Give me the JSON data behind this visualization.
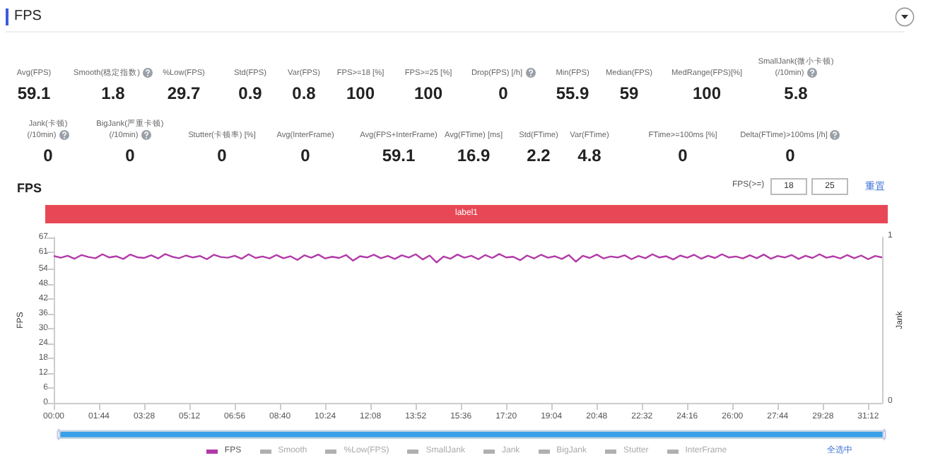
{
  "chart_data": [
    {
      "type": "other",
      "title": "FPS",
      "categories": [
        "Avg(FPS)",
        "Smooth(稳定指数)",
        "%Low(FPS)",
        "Std(FPS)",
        "Var(FPS)",
        "FPS>=18 [%]",
        "FPS>=25 [%]",
        "Drop(FPS) [/h]",
        "Min(FPS)",
        "Median(FPS)",
        "MedRange(FPS)[%]",
        "SmallJank(微小卡顿)\n(/10min)",
        "Jank(卡顿)\n(/10min)",
        "BigJank(严重卡顿)\n(/10min)",
        "Stutter(卡顿率) [%]",
        "Avg(InterFrame)",
        "Avg(FPS+InterFrame)",
        "Avg(FTime) [ms]",
        "Std(FTime)",
        "Var(FTime)",
        "FTime>=100ms [%]",
        "Delta(FTime)>100ms [/h]"
      ],
      "values": [
        59.1,
        1.8,
        29.7,
        0.9,
        0.8,
        100,
        100,
        0,
        55.9,
        59,
        100,
        5.8,
        0,
        0,
        0,
        0,
        59.1,
        16.9,
        2.2,
        4.8,
        0,
        0
      ],
      "data_labels": true
    },
    {
      "type": "line",
      "title": "FPS",
      "ylabel": "FPS",
      "y2label": "Jank",
      "legend": "bottom",
      "grid": false,
      "marker": "none",
      "line_style": "solid",
      "annotations": [
        "label1",
        "FPS(>=)",
        "18",
        "25",
        "重置",
        "全选中",
        "1",
        "0",
        "Smooth",
        "%Low(FPS)",
        "SmallJank",
        "Jank",
        "BigJank",
        "Stutter",
        "InterFrame"
      ],
      "xlim": [
        0,
        1904
      ],
      "xticks": [
        {
          "value": 0,
          "label": "00:00"
        },
        {
          "value": 104,
          "label": "01:44"
        },
        {
          "value": 208,
          "label": "03:28"
        },
        {
          "value": 312,
          "label": "05:12"
        },
        {
          "value": 416,
          "label": "06:56"
        },
        {
          "value": 520,
          "label": "08:40"
        },
        {
          "value": 624,
          "label": "10:24"
        },
        {
          "value": 728,
          "label": "12:08"
        },
        {
          "value": 832,
          "label": "13:52"
        },
        {
          "value": 936,
          "label": "15:36"
        },
        {
          "value": 1040,
          "label": "17:20"
        },
        {
          "value": 1144,
          "label": "19:04"
        },
        {
          "value": 1248,
          "label": "20:48"
        },
        {
          "value": 1352,
          "label": "22:32"
        },
        {
          "value": 1456,
          "label": "24:16"
        },
        {
          "value": 1560,
          "label": "26:00"
        },
        {
          "value": 1664,
          "label": "27:44"
        },
        {
          "value": 1768,
          "label": "29:28"
        },
        {
          "value": 1872,
          "label": "31:12"
        }
      ],
      "ylim": [
        0,
        67
      ],
      "yticks": [
        0,
        6,
        12,
        18,
        24,
        30,
        36,
        42,
        48,
        54,
        61,
        67
      ],
      "x": [
        0,
        16,
        32,
        48,
        64,
        80,
        96,
        112,
        128,
        144,
        160,
        176,
        192,
        208,
        224,
        240,
        256,
        272,
        288,
        304,
        320,
        336,
        352,
        368,
        384,
        400,
        416,
        432,
        448,
        464,
        480,
        496,
        512,
        528,
        544,
        560,
        576,
        592,
        608,
        624,
        640,
        656,
        672,
        688,
        704,
        720,
        736,
        752,
        768,
        784,
        800,
        816,
        832,
        848,
        864,
        880,
        896,
        912,
        928,
        944,
        960,
        976,
        992,
        1008,
        1024,
        1040,
        1056,
        1072,
        1088,
        1104,
        1120,
        1136,
        1152,
        1168,
        1184,
        1200,
        1216,
        1232,
        1248,
        1264,
        1280,
        1296,
        1312,
        1328,
        1344,
        1360,
        1376,
        1392,
        1408,
        1424,
        1440,
        1456,
        1472,
        1488,
        1504,
        1520,
        1536,
        1552,
        1568,
        1584,
        1600,
        1616,
        1632,
        1648,
        1664,
        1680,
        1696,
        1712,
        1728,
        1744,
        1760,
        1776,
        1792,
        1808,
        1824,
        1840,
        1856,
        1872,
        1888,
        1904
      ],
      "series": [
        {
          "name": "FPS",
          "color": "#b23aa8",
          "values": [
            59.5,
            58.8,
            59.6,
            58.4,
            59.9,
            59.1,
            58.6,
            60.2,
            58.9,
            59.4,
            58.3,
            60.1,
            59.0,
            58.7,
            59.8,
            58.5,
            60.3,
            59.2,
            58.6,
            59.7,
            58.9,
            59.5,
            58.2,
            60.0,
            59.1,
            58.8,
            59.6,
            58.4,
            60.2,
            58.7,
            59.3,
            58.5,
            59.9,
            58.6,
            59.4,
            57.9,
            59.8,
            58.8,
            60.1,
            58.5,
            59.2,
            58.7,
            59.9,
            57.6,
            59.4,
            58.9,
            60.0,
            58.6,
            59.5,
            58.3,
            59.8,
            58.9,
            60.2,
            58.1,
            59.7,
            56.9,
            59.3,
            58.4,
            60.1,
            58.8,
            59.6,
            58.2,
            59.9,
            58.7,
            60.3,
            58.9,
            59.2,
            57.8,
            59.7,
            58.5,
            60.0,
            58.8,
            59.4,
            58.3,
            59.9,
            57.2,
            59.6,
            58.7,
            60.1,
            58.5,
            59.3,
            58.9,
            59.8,
            58.2,
            59.5,
            58.6,
            60.2,
            58.9,
            59.4,
            58.1,
            59.7,
            58.8,
            60.0,
            58.4,
            59.6,
            58.7,
            60.2,
            58.9,
            59.3,
            58.5,
            59.8,
            58.6,
            60.1,
            58.4,
            59.5,
            58.9,
            59.9,
            58.3,
            59.6,
            58.7,
            60.2,
            58.8,
            59.4,
            58.5,
            59.9,
            58.6,
            59.7,
            58.2,
            59.5,
            58.9
          ]
        }
      ]
    }
  ]
}
